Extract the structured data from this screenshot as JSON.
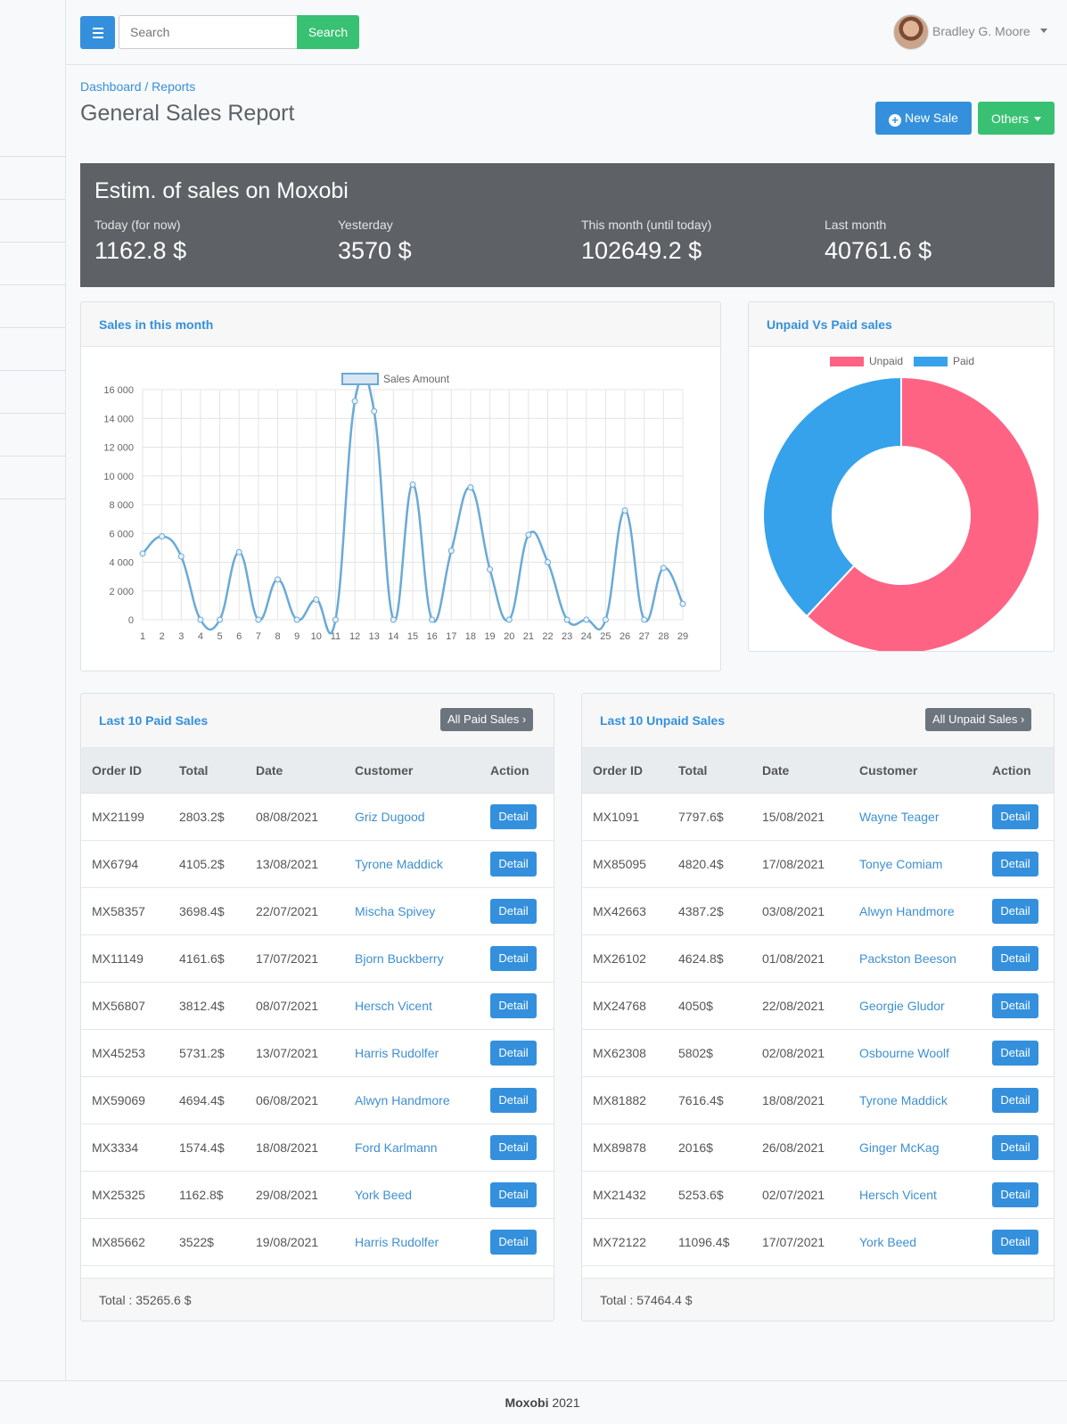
{
  "topbar": {
    "search_placeholder": "Search",
    "search_button": "Search",
    "user_name": "Bradley G. Moore"
  },
  "breadcrumb": {
    "first": "Dashboard",
    "separator": "/",
    "second": "Reports"
  },
  "page_title": "General Sales Report",
  "actions": {
    "new_sale": "New Sale",
    "others": "Others"
  },
  "estimates": {
    "title": "Estim. of sales on Moxobi",
    "items": [
      {
        "label": "Today (for now)",
        "value": "1162.8 $"
      },
      {
        "label": "Yesterday",
        "value": "3570 $"
      },
      {
        "label": "This month (until today)",
        "value": "102649.2 $"
      },
      {
        "label": "Last month",
        "value": "40761.6 $"
      }
    ]
  },
  "sales_chart_card": {
    "title": "Sales in this month"
  },
  "pie_chart_card": {
    "title": "Unpaid Vs Paid sales"
  },
  "chart_data": [
    {
      "type": "line",
      "title": "",
      "series": [
        {
          "name": "Sales Amount",
          "color": "#6aaad6",
          "x": [
            1,
            2,
            3,
            4,
            5,
            6,
            7,
            8,
            9,
            10,
            11,
            12,
            13,
            14,
            15,
            16,
            17,
            18,
            19,
            20,
            21,
            22,
            23,
            24,
            25,
            26,
            27,
            28,
            29
          ],
          "values": [
            4600,
            5800,
            4400,
            0,
            0,
            4700,
            0,
            2800,
            0,
            1400,
            0,
            15200,
            14500,
            0,
            9400,
            0,
            4800,
            9200,
            3500,
            0,
            5900,
            4000,
            0,
            0,
            0,
            7600,
            0,
            3600,
            1100
          ]
        }
      ],
      "ylim": [
        0,
        16000
      ],
      "yticks": [
        "16 000",
        "14 000",
        "12 000",
        "10 000",
        "8 000",
        "6 000",
        "4 000",
        "2 000",
        "0"
      ],
      "ytick_values": [
        16000,
        14000,
        12000,
        10000,
        8000,
        6000,
        4000,
        2000,
        0
      ],
      "xlabel": "",
      "ylabel": "",
      "grid": true,
      "legend": "top-center"
    },
    {
      "type": "pie",
      "title": "",
      "labels": [
        "Unpaid",
        "Paid"
      ],
      "values": [
        57464.4,
        35265.6
      ],
      "colors": [
        "#ff6384",
        "#36a2eb"
      ],
      "donut": true,
      "legend": "top-center"
    }
  ],
  "paid_sales": {
    "title": "Last 10 Paid Sales",
    "all_button": "All Paid Sales",
    "columns": [
      "Order ID",
      "Total",
      "Date",
      "Customer",
      "Action"
    ],
    "rows": [
      [
        "MX21199",
        "2803.2$",
        "08/08/2021",
        "Griz Dugood"
      ],
      [
        "MX6794",
        "4105.2$",
        "13/08/2021",
        "Tyrone Maddick"
      ],
      [
        "MX58357",
        "3698.4$",
        "22/07/2021",
        "Mischa Spivey"
      ],
      [
        "MX11149",
        "4161.6$",
        "17/07/2021",
        "Bjorn Buckberry"
      ],
      [
        "MX56807",
        "3812.4$",
        "08/07/2021",
        "Hersch Vicent"
      ],
      [
        "MX45253",
        "5731.2$",
        "13/07/2021",
        "Harris Rudolfer"
      ],
      [
        "MX59069",
        "4694.4$",
        "06/08/2021",
        "Alwyn Handmore"
      ],
      [
        "MX3334",
        "1574.4$",
        "18/08/2021",
        "Ford Karlmann"
      ],
      [
        "MX25325",
        "1162.8$",
        "29/08/2021",
        "York Beed"
      ],
      [
        "MX85662",
        "3522$",
        "19/08/2021",
        "Harris Rudolfer"
      ]
    ],
    "detail_label": "Detail",
    "total": "Total : 35265.6 $"
  },
  "unpaid_sales": {
    "title": "Last 10 Unpaid Sales",
    "all_button": "All Unpaid Sales",
    "columns": [
      "Order ID",
      "Total",
      "Date",
      "Customer",
      "Action"
    ],
    "rows": [
      [
        "MX1091",
        "7797.6$",
        "15/08/2021",
        "Wayne Teager"
      ],
      [
        "MX85095",
        "4820.4$",
        "17/08/2021",
        "Tonye Comiam"
      ],
      [
        "MX42663",
        "4387.2$",
        "03/08/2021",
        "Alwyn Handmore"
      ],
      [
        "MX26102",
        "4624.8$",
        "01/08/2021",
        "Packston Beeson"
      ],
      [
        "MX24768",
        "4050$",
        "22/08/2021",
        "Georgie Gludor"
      ],
      [
        "MX62308",
        "5802$",
        "02/08/2021",
        "Osbourne Woolf"
      ],
      [
        "MX81882",
        "7616.4$",
        "18/08/2021",
        "Tyrone Maddick"
      ],
      [
        "MX89878",
        "2016$",
        "26/08/2021",
        "Ginger McKag"
      ],
      [
        "MX21432",
        "5253.6$",
        "02/07/2021",
        "Hersch Vicent"
      ],
      [
        "MX72122",
        "11096.4$",
        "17/07/2021",
        "York Beed"
      ]
    ],
    "detail_label": "Detail",
    "total": "Total : 57464.4 $"
  },
  "footer": {
    "brand": "Moxobi",
    "year": "2021"
  }
}
